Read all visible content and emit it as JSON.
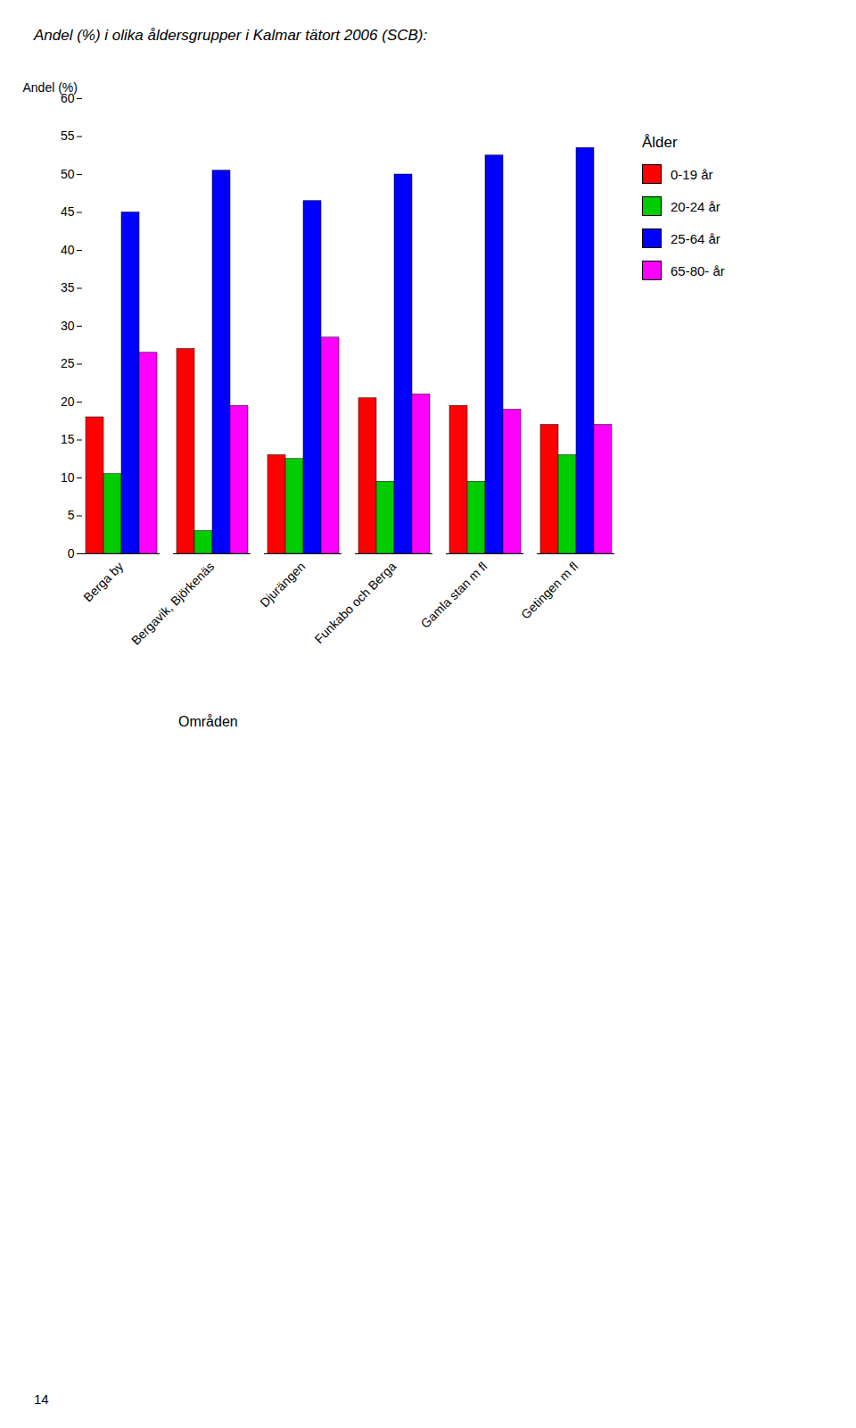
{
  "chart_data": {
    "type": "bar",
    "title": "Andel (%) i olika åldersgrupper i Kalmar tätort 2006 (SCB):",
    "ylabel": "Andel (%)",
    "xlabel": "Områden",
    "legend_title": "Ålder",
    "annotations": [
      "14"
    ],
    "categories": [
      "Berga by",
      "Bergavik, Björkenäs",
      "Djurängen",
      "Funkabo och Berga",
      "Gamla stan m fl",
      "Getingen m fl"
    ],
    "series": [
      {
        "name": "0-19 år",
        "color": "#ff0000",
        "values": [
          18,
          27,
          13,
          20.5,
          19.5,
          17
        ]
      },
      {
        "name": "20-24 år",
        "color": "#00cc00",
        "values": [
          10.5,
          3,
          12.5,
          9.5,
          9.5,
          13
        ]
      },
      {
        "name": "25-64 år",
        "color": "#0000ff",
        "values": [
          45,
          50.5,
          46.5,
          50,
          52.5,
          53.5
        ]
      },
      {
        "name": "65-80- år",
        "color": "#ff00ff",
        "values": [
          26.5,
          19.5,
          28.5,
          21,
          19,
          17
        ]
      }
    ],
    "ylim": [
      0,
      60
    ],
    "yticks": [
      0,
      5,
      10,
      15,
      20,
      25,
      30,
      35,
      40,
      45,
      50,
      55,
      60
    ],
    "grid": false,
    "legend": "right"
  }
}
